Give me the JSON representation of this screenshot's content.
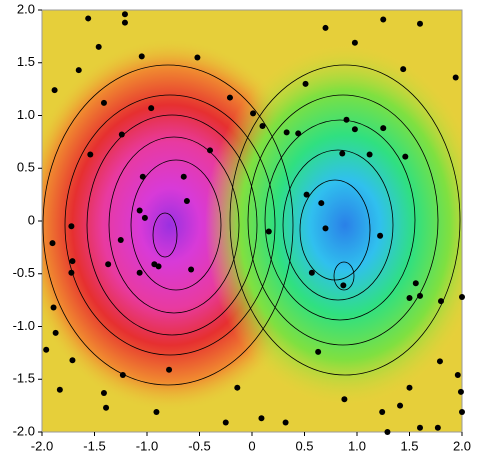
{
  "chart_data": {
    "type": "contour",
    "x": [
      -1.21,
      -1.56,
      -1.21,
      0.7,
      1.25,
      1.6,
      -1.46,
      -1.65,
      -1.05,
      -0.52,
      0.98,
      1.44,
      1.94,
      -1.88,
      0.51,
      -1.41,
      -0.96,
      -0.21,
      0.01,
      -1.24,
      0.1,
      0.44,
      0.33,
      0.9,
      0.98,
      1.25,
      -0.4,
      -1.54,
      1.46,
      -1.04,
      -0.65,
      0.86,
      1.12,
      -1.07,
      -1.02,
      0.52,
      0.66,
      -0.62,
      -1.9,
      -1.72,
      -1.25,
      -0.93,
      -0.89,
      -1.07,
      -1.37,
      -1.71,
      -1.72,
      -0.58,
      0.16,
      0.7,
      1.22,
      0.57,
      0.87,
      1.5,
      1.6,
      1.8,
      2.0,
      1.56,
      -1.89,
      -1.87,
      -1.96,
      -1.71,
      -1.23,
      -0.79,
      0.63,
      -1.83,
      -1.41,
      -0.91,
      -1.39,
      -0.25,
      0.09,
      0.32,
      0.88,
      1.24,
      1.41,
      1.5,
      1.96,
      1.99,
      1.77,
      1.6,
      1.29,
      2.0,
      1.79,
      -0.14
    ],
    "values": [
      1.96,
      1.92,
      1.88,
      1.83,
      1.91,
      1.87,
      1.65,
      1.43,
      1.56,
      1.55,
      1.69,
      1.44,
      1.36,
      1.24,
      1.3,
      1.12,
      1.07,
      1.17,
      1.02,
      0.82,
      0.9,
      0.83,
      0.84,
      0.96,
      0.87,
      0.88,
      0.67,
      0.63,
      0.61,
      0.42,
      0.42,
      0.64,
      0.63,
      0.1,
      0.03,
      0.25,
      0.17,
      0.19,
      -0.21,
      -0.05,
      -0.18,
      -0.41,
      -0.43,
      -0.49,
      -0.41,
      -0.38,
      -0.49,
      -0.46,
      -0.1,
      -0.07,
      -0.14,
      -0.49,
      -0.61,
      -0.73,
      -0.71,
      -0.76,
      -0.72,
      -0.59,
      -0.82,
      -1.06,
      -1.22,
      -1.32,
      -1.46,
      -1.41,
      -1.24,
      -1.6,
      -1.63,
      -1.81,
      -1.77,
      -1.91,
      -1.87,
      -1.91,
      -1.69,
      -1.81,
      -1.75,
      -1.58,
      -1.46,
      -1.62,
      -1.96,
      -1.96,
      -2.0,
      -1.81,
      -1.33,
      -1.58
    ],
    "xlim": [
      -2,
      2
    ],
    "ylim": [
      -2,
      2
    ],
    "xticks": [
      {
        "value": -2,
        "label": "-2.0"
      },
      {
        "value": -1.5,
        "label": "-1.5"
      },
      {
        "value": -1,
        "label": "-1.0"
      },
      {
        "value": -0.5,
        "label": "-0.5"
      },
      0,
      0.5,
      {
        "value": 1,
        "label": "1.0"
      },
      1.5,
      {
        "value": 2,
        "label": "2.0"
      }
    ],
    "yticks": [
      {
        "value": -2,
        "label": "-2.0"
      },
      {
        "value": -1.5,
        "label": "-1.5"
      },
      {
        "value": -1,
        "label": "-1.0"
      },
      {
        "value": -0.5,
        "label": "-0.5"
      },
      0,
      0.5,
      {
        "value": 1,
        "label": "1.0"
      },
      1.5,
      {
        "value": 2,
        "label": "2.0"
      }
    ],
    "color": "#000000"
  }
}
